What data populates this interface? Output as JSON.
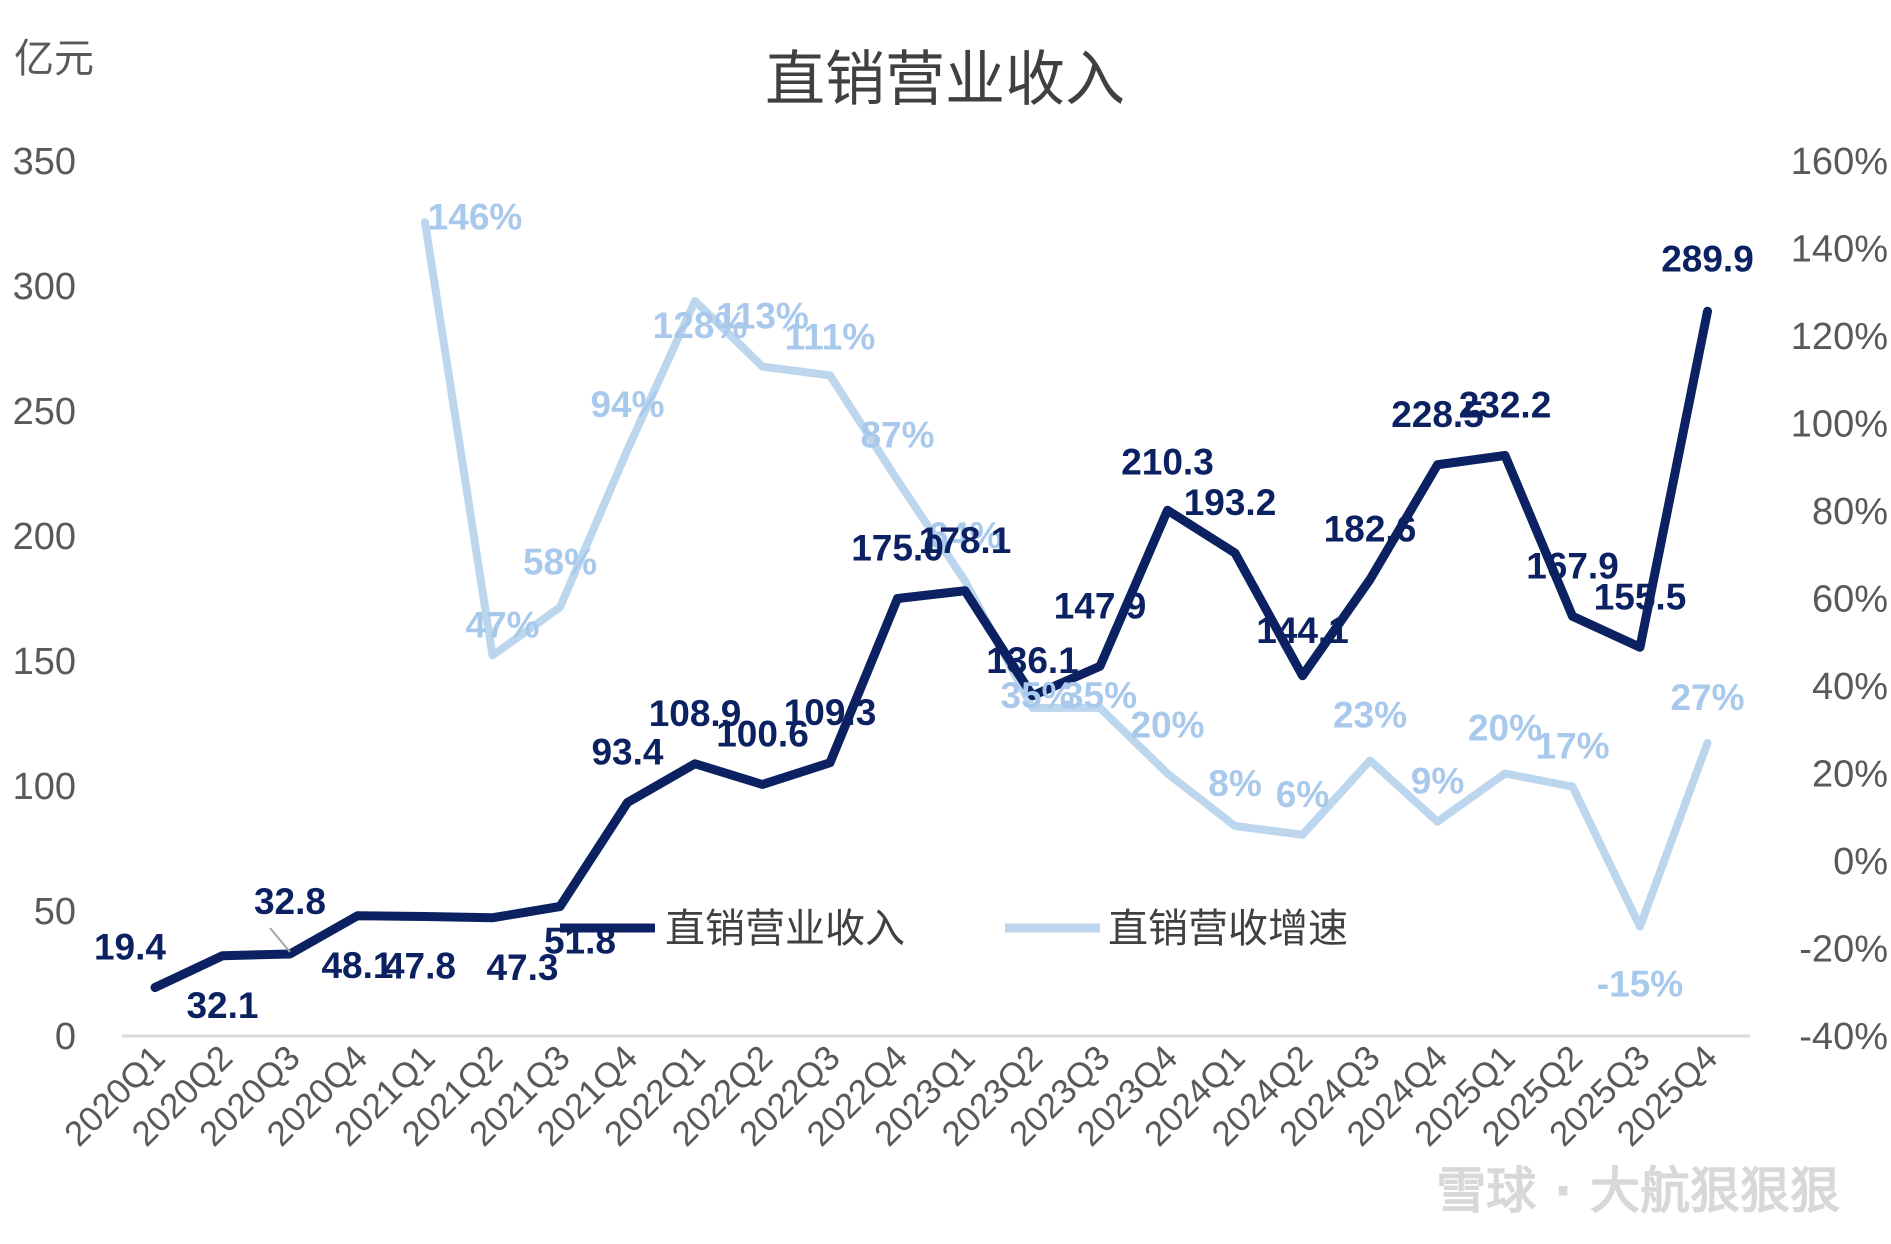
{
  "chart_data": {
    "type": "line",
    "title": "直销营业收入",
    "y_unit": "亿元",
    "categories": [
      "2020Q1",
      "2020Q2",
      "2020Q3",
      "2020Q4",
      "2021Q1",
      "2021Q2",
      "2021Q3",
      "2021Q4",
      "2022Q1",
      "2022Q2",
      "2022Q3",
      "2022Q4",
      "2023Q1",
      "2023Q2",
      "2023Q3",
      "2023Q4",
      "2024Q1",
      "2024Q2",
      "2024Q3",
      "2024Q4",
      "2025Q1",
      "2025Q2",
      "2025Q3",
      "2025Q4"
    ],
    "y_left": {
      "min": 0,
      "max": 350,
      "ticks": [
        "0",
        "50",
        "100",
        "150",
        "200",
        "250",
        "300",
        "350"
      ]
    },
    "y_right": {
      "min": -40,
      "max": 160,
      "ticks": [
        "-40%",
        "-20%",
        "0%",
        "20%",
        "40%",
        "60%",
        "80%",
        "100%",
        "120%",
        "140%",
        "160%"
      ]
    },
    "series": [
      {
        "name": "直销营业收入",
        "axis": "left",
        "color": "#0b2161",
        "values": [
          19.4,
          32.1,
          32.8,
          48.1,
          47.8,
          47.3,
          51.8,
          93.4,
          108.9,
          100.6,
          109.3,
          175.0,
          178.1,
          136.1,
          147.9,
          210.3,
          193.2,
          144.1,
          182.6,
          228.5,
          232.2,
          167.9,
          155.5,
          289.9
        ],
        "labels": [
          "19.4",
          "32.1",
          "32.8",
          "48.1",
          "47.8",
          "47.3",
          "51.8",
          "93.4",
          "108.9",
          "100.6",
          "109.3",
          "175.0",
          "178.1",
          "136.1",
          "147.9",
          "210.3",
          "193.2",
          "144.1",
          "182.6",
          "228.5",
          "232.2",
          "167.9",
          "155.5",
          "289.9"
        ]
      },
      {
        "name": "直销营收增速",
        "axis": "right",
        "color": "#bcd6ee",
        "values": [
          null,
          null,
          null,
          null,
          146,
          47,
          58,
          94,
          128,
          113,
          111,
          87,
          64,
          35,
          35,
          20,
          8,
          6,
          23,
          9,
          20,
          17,
          -15,
          27
        ],
        "labels": [
          null,
          null,
          null,
          null,
          "146%",
          "47%",
          "58%",
          "94%",
          "128%",
          "113%",
          "111%",
          "87%",
          "64%",
          "35%",
          "35%",
          "20%",
          "8%",
          "6%",
          "23%",
          "9%",
          "20%",
          "17%",
          "-15%",
          "27%"
        ]
      }
    ],
    "legend": "bottom-center"
  },
  "watermark": "雪球 · 大航狠狠狠"
}
